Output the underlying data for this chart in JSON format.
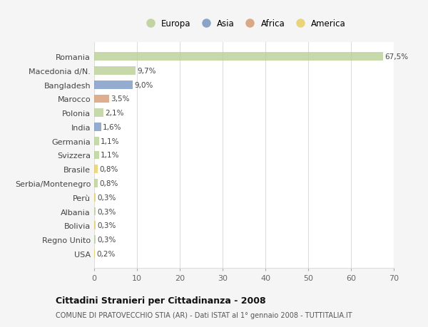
{
  "countries": [
    "Romania",
    "Macedonia d/N.",
    "Bangladesh",
    "Marocco",
    "Polonia",
    "India",
    "Germania",
    "Svizzera",
    "Brasile",
    "Serbia/Montenegro",
    "Perù",
    "Albania",
    "Bolivia",
    "Regno Unito",
    "USA"
  ],
  "values": [
    67.5,
    9.7,
    9.0,
    3.5,
    2.1,
    1.6,
    1.1,
    1.1,
    0.8,
    0.8,
    0.3,
    0.3,
    0.3,
    0.3,
    0.2
  ],
  "labels": [
    "67,5%",
    "9,7%",
    "9,0%",
    "3,5%",
    "2,1%",
    "1,6%",
    "1,1%",
    "1,1%",
    "0,8%",
    "0,8%",
    "0,3%",
    "0,3%",
    "0,3%",
    "0,3%",
    "0,2%"
  ],
  "continents": [
    "Europa",
    "Europa",
    "Asia",
    "Africa",
    "Europa",
    "Asia",
    "Europa",
    "Europa",
    "America",
    "Europa",
    "America",
    "Europa",
    "America",
    "Europa",
    "America"
  ],
  "continent_colors": {
    "Europa": "#b5cc8e",
    "Asia": "#7090bf",
    "Africa": "#d4956a",
    "America": "#e8cc5a"
  },
  "legend_items": [
    "Europa",
    "Asia",
    "Africa",
    "America"
  ],
  "legend_colors": [
    "#b5cc8e",
    "#7090bf",
    "#d4956a",
    "#e8cc5a"
  ],
  "xlim": [
    0,
    70
  ],
  "xticks": [
    0,
    10,
    20,
    30,
    40,
    50,
    60,
    70
  ],
  "title": "Cittadini Stranieri per Cittadinanza - 2008",
  "subtitle": "COMUNE DI PRATOVECCHIO STIA (AR) - Dati ISTAT al 1° gennaio 2008 - TUTTITALIA.IT",
  "bg_color": "#f5f5f5",
  "plot_bg_color": "#ffffff",
  "grid_color": "#dddddd",
  "bar_height": 0.6
}
